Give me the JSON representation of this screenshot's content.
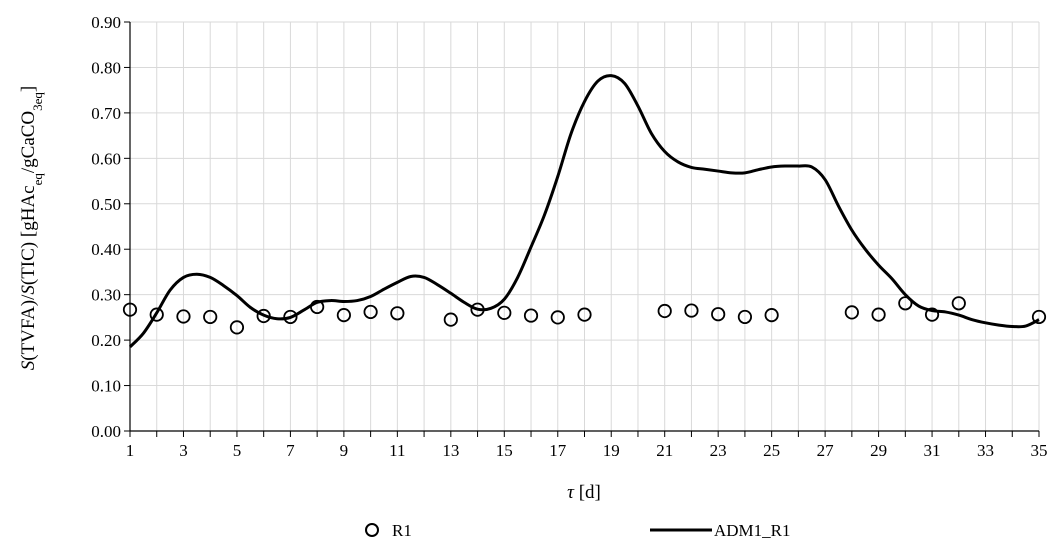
{
  "chart_data": {
    "type": "scatter",
    "title": "",
    "xlabel": {
      "var": "τ",
      "unit": " [d]"
    },
    "ylabel": {
      "p1": "S",
      "p2": "(TVFA)/",
      "p3": "S",
      "p4": "(TIC) [gHAc",
      "p5": "eq",
      "p6": "/gCaCO",
      "p7": "3eq",
      "p8": "]"
    },
    "xlim": [
      1,
      35
    ],
    "ylim": [
      0,
      0.9
    ],
    "x_ticks": [
      "1",
      "3",
      "5",
      "7",
      "9",
      "11",
      "13",
      "15",
      "17",
      "19",
      "21",
      "23",
      "25",
      "27",
      "29",
      "31",
      "33",
      "35"
    ],
    "y_ticks": [
      "0.00",
      "0.10",
      "0.20",
      "0.30",
      "0.40",
      "0.50",
      "0.60",
      "0.70",
      "0.80",
      "0.90"
    ],
    "grid": true,
    "legend_position": "bottom",
    "series": [
      {
        "name": "R1",
        "kind": "markers",
        "x": [
          1,
          2,
          3,
          4,
          5,
          6,
          7,
          8,
          9,
          10,
          11,
          13,
          14,
          15,
          16,
          17,
          18,
          21,
          22,
          23,
          24,
          25,
          28,
          29,
          30,
          31,
          32,
          35
        ],
        "y": [
          0.267,
          0.256,
          0.252,
          0.251,
          0.228,
          0.253,
          0.251,
          0.273,
          0.255,
          0.262,
          0.259,
          0.245,
          0.267,
          0.26,
          0.254,
          0.25,
          0.256,
          0.264,
          0.265,
          0.257,
          0.251,
          0.255,
          0.261,
          0.256,
          0.281,
          0.256,
          0.281,
          0.251
        ]
      },
      {
        "name": "ADM1_R1",
        "kind": "line",
        "x": [
          1,
          1.5,
          2,
          2.5,
          3,
          3.5,
          4,
          4.5,
          5,
          5.5,
          6,
          6.5,
          7,
          7.5,
          8,
          8.5,
          9,
          9.5,
          10,
          10.5,
          11,
          11.5,
          12,
          12.5,
          13,
          13.5,
          14,
          14.5,
          15,
          15.5,
          16,
          16.5,
          17,
          17.5,
          18,
          18.5,
          19,
          19.5,
          20,
          20.5,
          21,
          21.5,
          22,
          22.5,
          23,
          23.5,
          24,
          24.5,
          25,
          25.5,
          26,
          26.5,
          27,
          27.5,
          28,
          28.5,
          29,
          29.5,
          30,
          30.5,
          31,
          31.5,
          32,
          32.5,
          33,
          33.5,
          34,
          34.5,
          35
        ],
        "y": [
          0.185,
          0.215,
          0.26,
          0.31,
          0.338,
          0.345,
          0.338,
          0.32,
          0.298,
          0.272,
          0.255,
          0.247,
          0.25,
          0.266,
          0.283,
          0.287,
          0.285,
          0.287,
          0.296,
          0.312,
          0.327,
          0.34,
          0.338,
          0.322,
          0.303,
          0.283,
          0.268,
          0.27,
          0.29,
          0.338,
          0.405,
          0.475,
          0.56,
          0.655,
          0.725,
          0.77,
          0.782,
          0.765,
          0.715,
          0.655,
          0.615,
          0.592,
          0.58,
          0.576,
          0.572,
          0.568,
          0.568,
          0.575,
          0.581,
          0.583,
          0.583,
          0.581,
          0.553,
          0.495,
          0.442,
          0.4,
          0.365,
          0.335,
          0.3,
          0.275,
          0.265,
          0.262,
          0.255,
          0.245,
          0.238,
          0.233,
          0.23,
          0.231,
          0.245
        ]
      }
    ]
  }
}
